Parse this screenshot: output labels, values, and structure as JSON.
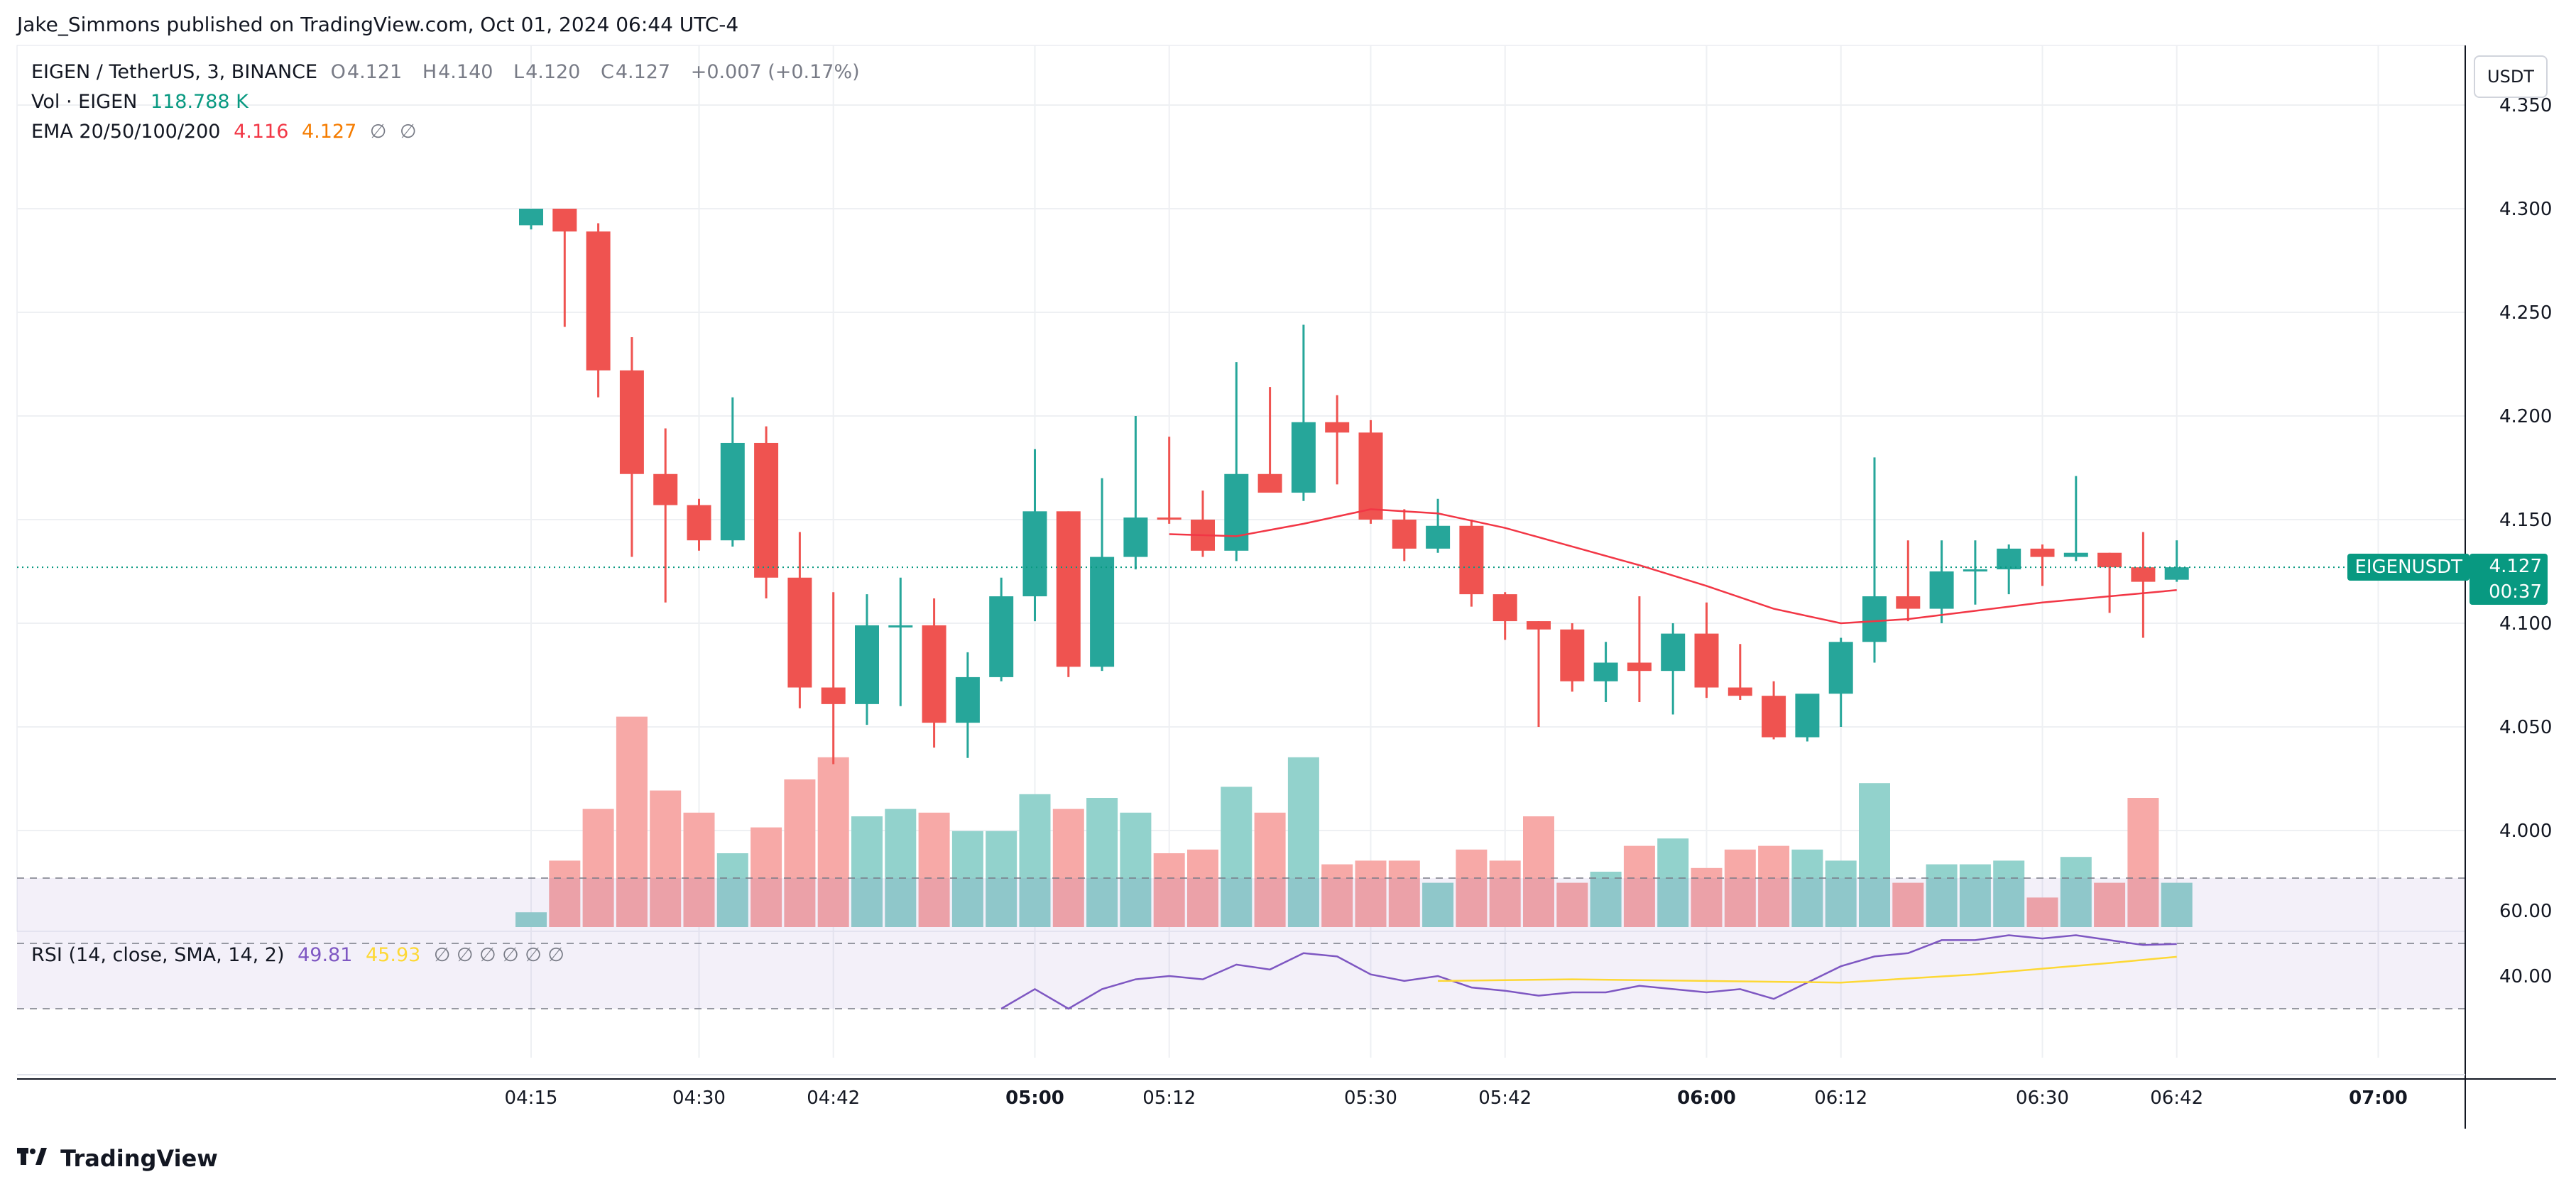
{
  "header": {
    "published": "Jake_Simmons published on TradingView.com, Oct 01, 2024 06:44 UTC-4"
  },
  "legend": {
    "symbol_line": {
      "symbol": "EIGEN / TetherUS, 3, BINANCE",
      "o_label": "O",
      "o_val": "4.121",
      "h_label": "H",
      "h_val": "4.140",
      "l_label": "L",
      "l_val": "4.120",
      "c_label": "C",
      "c_val": "4.127",
      "change": "+0.007 (+0.17%)"
    },
    "vol_line": {
      "label": "Vol · EIGEN",
      "value": "118.788 K"
    },
    "ema_line": {
      "label": "EMA 20/50/100/200",
      "v1": "4.116",
      "v2": "4.127",
      "v3": "∅",
      "v4": "∅"
    },
    "rsi_line": {
      "label": "RSI (14, close, SMA, 14, 2)",
      "v1": "49.81",
      "v2": "45.93",
      "rest": "∅ ∅ ∅ ∅ ∅ ∅"
    }
  },
  "currency_button": "USDT",
  "price_label": {
    "symbol": "EIGENUSDT",
    "price": "4.127",
    "countdown": "00:37"
  },
  "brand": "TradingView",
  "colors": {
    "up": "#26a69a",
    "down": "#ef5350",
    "up_vol": "#92d2cc",
    "down_vol": "#f7a9a7",
    "ema": "#f23645",
    "rsi": "#7e57c2",
    "rsi_ma": "#fdd835",
    "grid": "#eef0f3"
  },
  "chart_data": {
    "type": "candlestick",
    "price_axis": {
      "ticks": [
        "4.350",
        "4.300",
        "4.250",
        "4.200",
        "4.150",
        "4.100",
        "4.050",
        "4.000"
      ],
      "ylim": [
        3.955,
        4.36
      ]
    },
    "time_axis": {
      "ticks": [
        "04:15",
        "04:30",
        "04:42",
        "05:00",
        "05:12",
        "05:30",
        "05:42",
        "06:00",
        "06:12",
        "06:30",
        "06:42",
        "07:00"
      ]
    },
    "candles": [
      {
        "t": "04:15",
        "o": 4.292,
        "h": 4.3,
        "l": 4.29,
        "c": 4.3,
        "v": 0.4
      },
      {
        "t": "04:18",
        "o": 4.3,
        "h": 4.3,
        "l": 4.243,
        "c": 4.289,
        "v": 1.8
      },
      {
        "t": "04:21",
        "o": 4.289,
        "h": 4.293,
        "l": 4.209,
        "c": 4.222,
        "v": 3.2
      },
      {
        "t": "04:24",
        "o": 4.222,
        "h": 4.238,
        "l": 4.132,
        "c": 4.172,
        "v": 5.7
      },
      {
        "t": "04:27",
        "o": 4.172,
        "h": 4.194,
        "l": 4.11,
        "c": 4.157,
        "v": 3.7
      },
      {
        "t": "04:30",
        "o": 4.157,
        "h": 4.16,
        "l": 4.135,
        "c": 4.14,
        "v": 3.1
      },
      {
        "t": "04:33",
        "o": 4.14,
        "h": 4.209,
        "l": 4.137,
        "c": 4.187,
        "v": 2.0
      },
      {
        "t": "04:36",
        "o": 4.187,
        "h": 4.195,
        "l": 4.112,
        "c": 4.122,
        "v": 2.7
      },
      {
        "t": "04:39",
        "o": 4.122,
        "h": 4.144,
        "l": 4.059,
        "c": 4.069,
        "v": 4.0
      },
      {
        "t": "04:42",
        "o": 4.069,
        "h": 4.115,
        "l": 4.032,
        "c": 4.061,
        "v": 4.6
      },
      {
        "t": "04:45",
        "o": 4.061,
        "h": 4.114,
        "l": 4.051,
        "c": 4.099,
        "v": 3.0
      },
      {
        "t": "04:48",
        "o": 4.099,
        "h": 4.122,
        "l": 4.06,
        "c": 4.099,
        "v": 3.2
      },
      {
        "t": "04:51",
        "o": 4.099,
        "h": 4.112,
        "l": 4.04,
        "c": 4.052,
        "v": 3.1
      },
      {
        "t": "04:54",
        "o": 4.052,
        "h": 4.086,
        "l": 4.035,
        "c": 4.074,
        "v": 2.6
      },
      {
        "t": "04:57",
        "o": 4.074,
        "h": 4.122,
        "l": 4.072,
        "c": 4.113,
        "v": 2.6
      },
      {
        "t": "05:00",
        "o": 4.113,
        "h": 4.184,
        "l": 4.101,
        "c": 4.154,
        "v": 3.6
      },
      {
        "t": "05:03",
        "o": 4.154,
        "h": 4.154,
        "l": 4.074,
        "c": 4.079,
        "v": 3.2
      },
      {
        "t": "05:06",
        "o": 4.079,
        "h": 4.17,
        "l": 4.077,
        "c": 4.132,
        "v": 3.5
      },
      {
        "t": "05:09",
        "o": 4.132,
        "h": 4.2,
        "l": 4.126,
        "c": 4.151,
        "v": 3.1
      },
      {
        "t": "05:12",
        "o": 4.151,
        "h": 4.19,
        "l": 4.148,
        "c": 4.15,
        "v": 2.0
      },
      {
        "t": "05:15",
        "o": 4.15,
        "h": 4.164,
        "l": 4.132,
        "c": 4.135,
        "v": 2.1
      },
      {
        "t": "05:18",
        "o": 4.135,
        "h": 4.226,
        "l": 4.13,
        "c": 4.172,
        "v": 3.8
      },
      {
        "t": "05:21",
        "o": 4.172,
        "h": 4.214,
        "l": 4.163,
        "c": 4.163,
        "v": 3.1
      },
      {
        "t": "05:24",
        "o": 4.163,
        "h": 4.244,
        "l": 4.159,
        "c": 4.197,
        "v": 4.6
      },
      {
        "t": "05:27",
        "o": 4.197,
        "h": 4.21,
        "l": 4.167,
        "c": 4.192,
        "v": 1.7
      },
      {
        "t": "05:30",
        "o": 4.192,
        "h": 4.198,
        "l": 4.148,
        "c": 4.15,
        "v": 1.8
      },
      {
        "t": "05:33",
        "o": 4.15,
        "h": 4.155,
        "l": 4.13,
        "c": 4.136,
        "v": 1.8
      },
      {
        "t": "05:36",
        "o": 4.136,
        "h": 4.16,
        "l": 4.134,
        "c": 4.147,
        "v": 1.2
      },
      {
        "t": "05:39",
        "o": 4.147,
        "h": 4.15,
        "l": 4.108,
        "c": 4.114,
        "v": 2.1
      },
      {
        "t": "05:42",
        "o": 4.114,
        "h": 4.115,
        "l": 4.092,
        "c": 4.101,
        "v": 1.8
      },
      {
        "t": "05:45",
        "o": 4.101,
        "h": 4.101,
        "l": 4.05,
        "c": 4.097,
        "v": 3.0
      },
      {
        "t": "05:48",
        "o": 4.097,
        "h": 4.1,
        "l": 4.067,
        "c": 4.072,
        "v": 1.2
      },
      {
        "t": "05:51",
        "o": 4.072,
        "h": 4.091,
        "l": 4.062,
        "c": 4.081,
        "v": 1.5
      },
      {
        "t": "05:54",
        "o": 4.081,
        "h": 4.113,
        "l": 4.062,
        "c": 4.077,
        "v": 2.2
      },
      {
        "t": "05:57",
        "o": 4.077,
        "h": 4.1,
        "l": 4.056,
        "c": 4.095,
        "v": 2.4
      },
      {
        "t": "06:00",
        "o": 4.095,
        "h": 4.11,
        "l": 4.064,
        "c": 4.069,
        "v": 1.6
      },
      {
        "t": "06:03",
        "o": 4.069,
        "h": 4.09,
        "l": 4.063,
        "c": 4.065,
        "v": 2.1
      },
      {
        "t": "06:06",
        "o": 4.065,
        "h": 4.072,
        "l": 4.044,
        "c": 4.045,
        "v": 2.2
      },
      {
        "t": "06:09",
        "o": 4.045,
        "h": 4.065,
        "l": 4.043,
        "c": 4.066,
        "v": 2.1
      },
      {
        "t": "06:12",
        "o": 4.066,
        "h": 4.093,
        "l": 4.05,
        "c": 4.091,
        "v": 1.8
      },
      {
        "t": "06:15",
        "o": 4.091,
        "h": 4.18,
        "l": 4.081,
        "c": 4.113,
        "v": 3.9
      },
      {
        "t": "06:18",
        "o": 4.113,
        "h": 4.14,
        "l": 4.101,
        "c": 4.107,
        "v": 1.2
      },
      {
        "t": "06:21",
        "o": 4.107,
        "h": 4.14,
        "l": 4.1,
        "c": 4.125,
        "v": 1.7
      },
      {
        "t": "06:24",
        "o": 4.125,
        "h": 4.14,
        "l": 4.109,
        "c": 4.126,
        "v": 1.7
      },
      {
        "t": "06:27",
        "o": 4.126,
        "h": 4.138,
        "l": 4.114,
        "c": 4.136,
        "v": 1.8
      },
      {
        "t": "06:30",
        "o": 4.136,
        "h": 4.138,
        "l": 4.118,
        "c": 4.132,
        "v": 0.8
      },
      {
        "t": "06:33",
        "o": 4.132,
        "h": 4.171,
        "l": 4.13,
        "c": 4.134,
        "v": 1.9
      },
      {
        "t": "06:36",
        "o": 4.134,
        "h": 4.134,
        "l": 4.105,
        "c": 4.127,
        "v": 1.2
      },
      {
        "t": "06:39",
        "o": 4.127,
        "h": 4.144,
        "l": 4.093,
        "c": 4.12,
        "v": 3.5
      },
      {
        "t": "06:42",
        "o": 4.121,
        "h": 4.14,
        "l": 4.12,
        "c": 4.127,
        "v": 1.2
      }
    ],
    "ema20": [
      [
        "05:12",
        4.143
      ],
      [
        "05:18",
        4.142
      ],
      [
        "05:24",
        4.148
      ],
      [
        "05:30",
        4.155
      ],
      [
        "05:36",
        4.153
      ],
      [
        "05:42",
        4.146
      ],
      [
        "05:48",
        4.137
      ],
      [
        "05:54",
        4.128
      ],
      [
        "06:00",
        4.118
      ],
      [
        "06:06",
        4.107
      ],
      [
        "06:12",
        4.1
      ],
      [
        "06:18",
        4.102
      ],
      [
        "06:24",
        4.106
      ],
      [
        "06:30",
        4.11
      ],
      [
        "06:36",
        4.113
      ],
      [
        "06:42",
        4.116
      ]
    ],
    "rsi": {
      "levels": [
        70,
        50,
        30
      ],
      "ticks": [
        "60.00",
        "40.00"
      ],
      "ylim": [
        15,
        75
      ],
      "rsi": [
        [
          "04:57",
          30.0
        ],
        [
          "05:00",
          36.0
        ],
        [
          "05:03",
          30.0
        ],
        [
          "05:06",
          36.0
        ],
        [
          "05:09",
          39.0
        ],
        [
          "05:12",
          40.0
        ],
        [
          "05:15",
          39.0
        ],
        [
          "05:18",
          43.5
        ],
        [
          "05:21",
          42.0
        ],
        [
          "05:24",
          47.0
        ],
        [
          "05:27",
          46.0
        ],
        [
          "05:30",
          40.5
        ],
        [
          "05:33",
          38.5
        ],
        [
          "05:36",
          40.0
        ],
        [
          "05:39",
          36.5
        ],
        [
          "05:42",
          35.5
        ],
        [
          "05:45",
          34.0
        ],
        [
          "05:48",
          35.0
        ],
        [
          "05:51",
          35.0
        ],
        [
          "05:54",
          37.0
        ],
        [
          "05:57",
          36.0
        ],
        [
          "06:00",
          35.0
        ],
        [
          "06:03",
          36.0
        ],
        [
          "06:06",
          33.0
        ],
        [
          "06:09",
          38.0
        ],
        [
          "06:12",
          43.0
        ],
        [
          "06:15",
          46.0
        ],
        [
          "06:18",
          47.0
        ],
        [
          "06:21",
          51.0
        ],
        [
          "06:24",
          51.0
        ],
        [
          "06:27",
          52.5
        ],
        [
          "06:30",
          51.5
        ],
        [
          "06:33",
          52.5
        ],
        [
          "06:36",
          51.0
        ],
        [
          "06:39",
          49.5
        ],
        [
          "06:42",
          49.8
        ]
      ],
      "rsi_ma": [
        [
          "05:36",
          38.5
        ],
        [
          "05:48",
          39.0
        ],
        [
          "06:00",
          38.5
        ],
        [
          "06:12",
          38.0
        ],
        [
          "06:24",
          40.5
        ],
        [
          "06:36",
          44.0
        ],
        [
          "06:42",
          45.9
        ]
      ]
    }
  }
}
